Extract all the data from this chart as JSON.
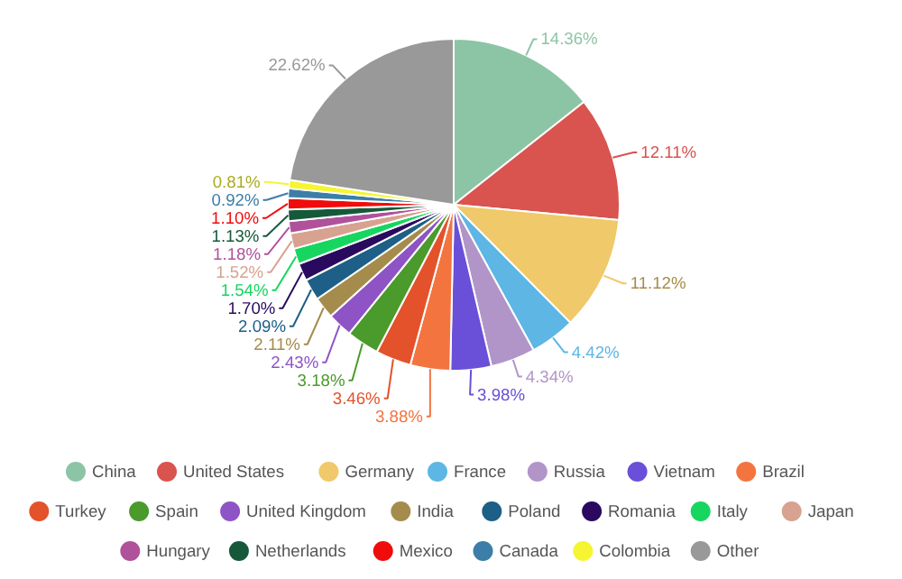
{
  "chart_data": {
    "type": "pie",
    "categories": [
      "China",
      "United States",
      "Germany",
      "France",
      "Russia",
      "Vietnam",
      "Brazil",
      "Turkey",
      "Spain",
      "United Kingdom",
      "India",
      "Poland",
      "Romania",
      "Italy",
      "Japan",
      "Hungary",
      "Netherlands",
      "Mexico",
      "Canada",
      "Colombia",
      "Other"
    ],
    "values": [
      14.36,
      12.11,
      11.12,
      4.42,
      4.34,
      3.98,
      3.88,
      3.46,
      3.18,
      2.43,
      2.11,
      2.09,
      1.7,
      1.54,
      1.52,
      1.18,
      1.13,
      1.1,
      0.92,
      0.81,
      22.62
    ],
    "colors": [
      "#8cc5a5",
      "#d9534f",
      "#efc96a",
      "#5db6e4",
      "#b195c8",
      "#6a4fd8",
      "#f47440",
      "#e4522b",
      "#4a9a2c",
      "#8e54c6",
      "#a58c4c",
      "#1d5f86",
      "#2a0a5e",
      "#16d660",
      "#d8a290",
      "#b0519c",
      "#15593a",
      "#f00c0c",
      "#3c7ea8",
      "#f5f532",
      "#999999"
    ],
    "value_labels": [
      "14.36%",
      "12.11%",
      "11.12%",
      "4.42%",
      "4.34%",
      "3.98%",
      "3.88%",
      "3.46%",
      "3.18%",
      "2.43%",
      "2.11%",
      "2.09%",
      "1.70%",
      "1.54%",
      "1.52%",
      "1.18%",
      "1.13%",
      "1.10%",
      "0.92%",
      "0.81%",
      "22.62%"
    ],
    "legend": "bottom"
  }
}
